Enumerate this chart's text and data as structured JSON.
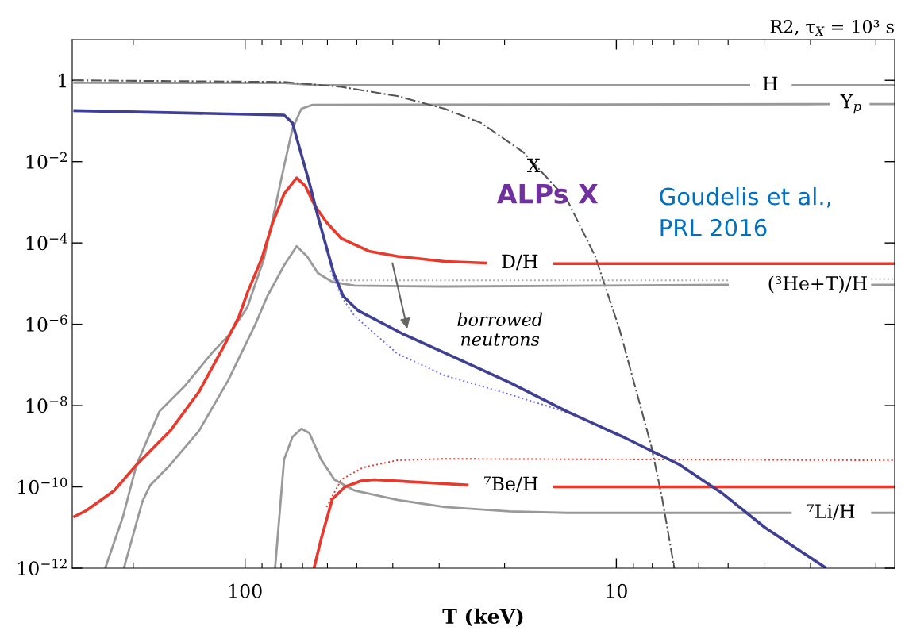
{
  "chart_data": {
    "type": "line",
    "title": "R2, τ$_{X}$ = 10³ s",
    "xlabel": "T (keV)",
    "log": "xy",
    "xlim": [
      292,
      1.78
    ],
    "ylim": [
      1e-12,
      10
    ],
    "xticks": [
      100,
      10
    ],
    "yticks": [
      {
        "value": 1,
        "label": "1"
      },
      {
        "value": 0.01,
        "label": "10$^{−2}$"
      },
      {
        "value": 0.0001,
        "label": "10$^{−4}$"
      },
      {
        "value": 1e-06,
        "label": "10$^{−6}$"
      },
      {
        "value": 1e-08,
        "label": "10$^{−8}$"
      },
      {
        "value": 1e-10,
        "label": "10$^{−10}$"
      },
      {
        "value": 1e-12,
        "label": "10$^{−12}$"
      }
    ],
    "series": [
      {
        "name": "H",
        "color": "#999999",
        "line_style": "solid",
        "x": [
          290,
          78.5,
          70.2,
          63.6,
          4.36,
          3.85,
          3.37,
          1.78
        ],
        "values": [
          0.87,
          0.86,
          0.8,
          0.76,
          0.76,
          null,
          0.76,
          0.76
        ]
      },
      {
        "name": "Y$_{p}$",
        "color": "#999999",
        "line_style": "solid",
        "x": [
          238,
          213,
          196,
          170,
          145,
          122,
          111,
          98.6,
          88.9,
          83.0,
          78.5,
          74.5,
          70.5,
          65.8,
          2.66,
          2.33,
          2.08,
          1.78
        ],
        "values": [
          1e-12,
          1.9e-11,
          3.5e-10,
          7.2e-09,
          3.1e-08,
          2.1e-07,
          5.2e-07,
          2.6e-06,
          4.1e-05,
          0.00072,
          0.0078,
          0.065,
          0.2,
          0.25,
          0.26,
          null,
          0.26,
          0.26
        ]
      },
      {
        "color": "#555555",
        "line_style": "dashdot",
        "x": [
          290,
          78.5,
          55.1,
          38.9,
          29.0,
          23.1,
          17.8,
          13.6,
          11.4,
          9.8,
          8.05,
          7.52,
          6.98
        ],
        "values": [
          1.0,
          0.91,
          0.69,
          0.41,
          0.2,
          0.089,
          0.017,
          0.0012,
          4.7e-05,
          7.4e-07,
          1e-09,
          5e-11,
          1e-12
        ]
      },
      {
        "color": "#aaaaaa",
        "line_style": "dotted",
        "x": [
          57.7,
          4.98,
          2.87,
          2.06,
          1.78
        ],
        "values": [
          1.2e-05,
          1.2e-05,
          null,
          1.3e-05,
          1.3e-05
        ]
      },
      {
        "name": "(³He+T)/H",
        "color": "#999999",
        "line_style": "solid",
        "x": [
          212,
          189,
          180,
          159,
          133,
          111,
          93.8,
          87.1,
          78.5,
          72.6,
          68.1,
          63.6,
          58.2,
          50.7,
          29.0,
          4.98,
          2.87,
          2.06,
          1.78
        ],
        "values": [
          1e-12,
          4.4e-11,
          1.1e-10,
          3.5e-10,
          2.4e-09,
          4.2e-08,
          1e-06,
          4.9e-06,
          2.8e-05,
          8.3e-05,
          4.7e-05,
          1.8e-05,
          1.1e-05,
          8.9e-06,
          8.5e-06,
          9.3e-06,
          null,
          9.3e-06,
          9.3e-06
        ]
      },
      {
        "name": "⁷Li/H",
        "color": "#999999",
        "line_style": "solid",
        "x": [
          83.0,
          78.5,
          74.5,
          70.5,
          67.1,
          62.4,
          57.4,
          50.7,
          38.9,
          29.0,
          19.4,
          13.6,
          3.37,
          2.64,
          2.06,
          1.78
        ],
        "values": [
          1e-12,
          4.7e-10,
          1.7e-09,
          2.7e-09,
          2.1e-09,
          4.7e-10,
          1.5e-10,
          8.1e-11,
          4.8e-11,
          3.2e-11,
          2.5e-11,
          2.3e-11,
          2.3e-11,
          null,
          2.3e-11,
          2.3e-11
        ]
      },
      {
        "color": "#e8392c",
        "line_style": "dotted",
        "x": [
          60.3,
          55.1,
          48.1,
          38.9,
          29.0,
          1.78
        ],
        "values": [
          3.2e-11,
          1.5e-10,
          3e-10,
          4.5e-10,
          4.9e-10,
          4.5e-10
        ]
      },
      {
        "name": "⁷Be/H",
        "color": "#e8392c",
        "line_style": "solid",
        "x": [
          65.2,
          62.4,
          58.2,
          53.8,
          48.7,
          44.9,
          29.0,
          25.0,
          19.2,
          14.8,
          1.78
        ],
        "values": [
          1e-12,
          5.2e-12,
          5e-11,
          1e-10,
          1.4e-10,
          1.5e-10,
          1.2e-10,
          1.1e-10,
          null,
          1e-10,
          1e-10
        ]
      },
      {
        "name": "D/H",
        "color": "#e8392c",
        "line_style": "solid",
        "x": [
          290,
          268,
          225,
          196,
          159,
          133,
          114,
          104,
          98.6,
          90.2,
          84.2,
          78.5,
          72.6,
          68.8,
          64.9,
          60.3,
          55.1,
          46.4,
          38.9,
          29.0,
          22.3,
          18.2,
          14.8,
          1.78
        ],
        "values": [
          1.8e-11,
          2.6e-11,
          8.1e-11,
          3.5e-10,
          2.4e-09,
          2.2e-08,
          2.9e-07,
          1.5e-06,
          5.9e-06,
          4.1e-05,
          0.00032,
          0.0016,
          0.004,
          0.0025,
          0.00083,
          0.00032,
          0.00013,
          6.3e-05,
          4.7e-05,
          3.5e-05,
          3.2e-05,
          null,
          3.1e-05,
          3.1e-05
        ]
      },
      {
        "color": "#6a6aee",
        "line_style": "dotted",
        "x": [
          58.9,
          55.1,
          50.7,
          38.9,
          29.0,
          19.4,
          13.2
        ],
        "values": [
          2.1e-05,
          4.9e-06,
          1.6e-06,
          1.9e-07,
          5.5e-08,
          1.9e-08,
          6.3e-09
        ]
      },
      {
        "color": "#3f3f94",
        "line_style": "solid",
        "x": [
          290,
          78.5,
          74.5,
          70.8,
          67.1,
          63.6,
          60.3,
          57.7,
          54.4,
          49.7,
          37.6,
          29.4,
          19.4,
          13.6,
          9.6,
          6.75,
          5.2,
          3.98,
          2.72
        ],
        "values": [
          0.18,
          0.14,
          0.089,
          0.017,
          0.003,
          0.00044,
          7.6e-05,
          1.8e-05,
          4.9e-06,
          2.2e-06,
          5.8e-07,
          2.1e-07,
          3.7e-08,
          7.2e-09,
          1.7e-09,
          3.5e-10,
          7.1e-11,
          1e-11,
          1e-12
        ]
      }
    ],
    "annotations": [
      {
        "text": "X",
        "x": 16.7,
        "y": 0.0074
      },
      "borrowed\nneutrons",
      "ALPs X",
      "Goudelis et al.,\nPRL 2016"
    ]
  }
}
